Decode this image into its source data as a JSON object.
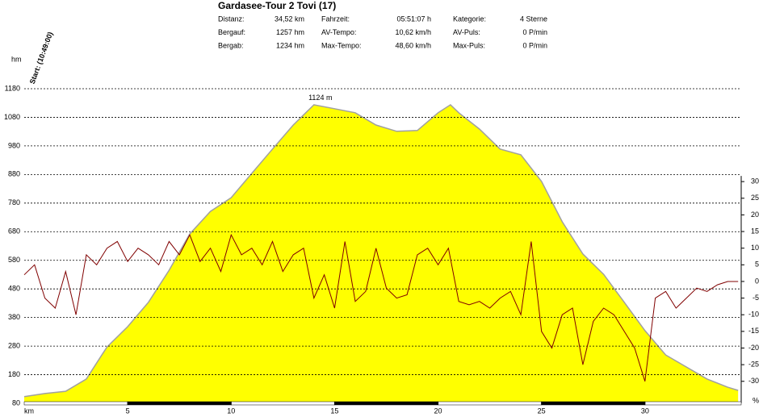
{
  "chart_data": {
    "type": "line",
    "title": "Gardasee-Tour 2 Tovi (17)",
    "stats": [
      {
        "label": "Distanz:",
        "value": "34,52 km"
      },
      {
        "label": "Fahrzeit:",
        "value": "05:51:07 h"
      },
      {
        "label": "Kategorie:",
        "value": "4 Sterne"
      },
      {
        "label": "Bergauf:",
        "value": "1257 hm"
      },
      {
        "label": "AV-Tempo:",
        "value": "10,62 km/h"
      },
      {
        "label": "AV-Puls:",
        "value": "0 P/min"
      },
      {
        "label": "Bergab:",
        "value": "1234 hm"
      },
      {
        "label": "Max-Tempo:",
        "value": "48,60 km/h"
      },
      {
        "label": "Max-Puls:",
        "value": "0 P/min"
      }
    ],
    "start_label": "Start: (10:49:00)",
    "y_label": "hm",
    "x_label": "km",
    "y2_label": "%",
    "annotation": "1124 m",
    "xlim": [
      0,
      34.65
    ],
    "xticks": [
      5,
      10,
      15,
      20,
      25,
      30
    ],
    "ylim": [
      80,
      1180
    ],
    "yticks": [
      80,
      180,
      280,
      380,
      480,
      580,
      680,
      780,
      880,
      980,
      1080,
      1180
    ],
    "y2lim": [
      -36.6,
      57.9
    ],
    "y2ticks": [
      -30,
      -25,
      -20,
      -15,
      -10,
      -5,
      0,
      5,
      10,
      15,
      20,
      25,
      30
    ],
    "grid": true,
    "series": [
      {
        "name": "Höhe",
        "type": "area",
        "color": "#ffff00",
        "line_color": "#a0a0a0",
        "x": [
          0,
          1,
          2,
          3,
          4,
          5,
          6,
          7,
          8,
          9,
          10,
          11,
          12,
          13,
          14,
          15,
          16,
          17,
          18,
          19,
          20,
          20.6,
          21,
          22,
          23,
          24,
          25,
          26,
          27,
          28,
          29,
          30,
          31,
          32,
          33,
          34,
          34.5
        ],
        "values": [
          103,
          114,
          122,
          165,
          277,
          348,
          433,
          545,
          672,
          751,
          799,
          884,
          969,
          1053,
          1124,
          1110,
          1096,
          1053,
          1031,
          1034,
          1096,
          1124,
          1096,
          1039,
          969,
          949,
          856,
          715,
          602,
          531,
          433,
          334,
          249,
          207,
          165,
          136,
          125
        ]
      },
      {
        "name": "Steigung",
        "type": "line",
        "axis": "y2",
        "color": "#800000",
        "x": [
          0,
          0.5,
          1,
          1.5,
          2,
          2.5,
          3,
          3.5,
          4,
          4.5,
          5,
          5.5,
          6,
          6.5,
          7,
          7.5,
          8,
          8.5,
          9,
          9.5,
          10,
          10.5,
          11,
          11.5,
          12,
          12.5,
          13,
          13.5,
          14,
          14.5,
          15,
          15.5,
          16,
          16.5,
          17,
          17.5,
          18,
          18.5,
          19,
          19.5,
          20,
          20.5,
          21,
          21.5,
          22,
          22.5,
          23,
          23.5,
          24,
          24.5,
          25,
          25.5,
          26,
          26.5,
          27,
          27.5,
          28,
          28.5,
          29,
          29.5,
          30,
          30.5,
          31,
          31.5,
          32,
          32.5,
          33,
          33.5,
          34,
          34.5
        ],
        "values": [
          2,
          5,
          -5,
          -8,
          3,
          -10,
          8,
          5,
          10,
          12,
          6,
          10,
          8,
          5,
          12,
          8,
          14,
          6,
          10,
          3,
          14,
          8,
          10,
          5,
          12,
          3,
          8,
          10,
          -5,
          2,
          -8,
          12,
          -6,
          -3,
          10,
          -2,
          -5,
          -4,
          8,
          10,
          5,
          10,
          -6,
          -7,
          -6,
          -8,
          -5,
          -3,
          -10,
          12,
          -15,
          -20,
          -10,
          -8,
          -25,
          -12,
          -8,
          -10,
          -15,
          -20,
          -30,
          -5,
          -3,
          -8,
          -5,
          -2,
          -3,
          -1,
          0,
          0
        ]
      }
    ]
  }
}
